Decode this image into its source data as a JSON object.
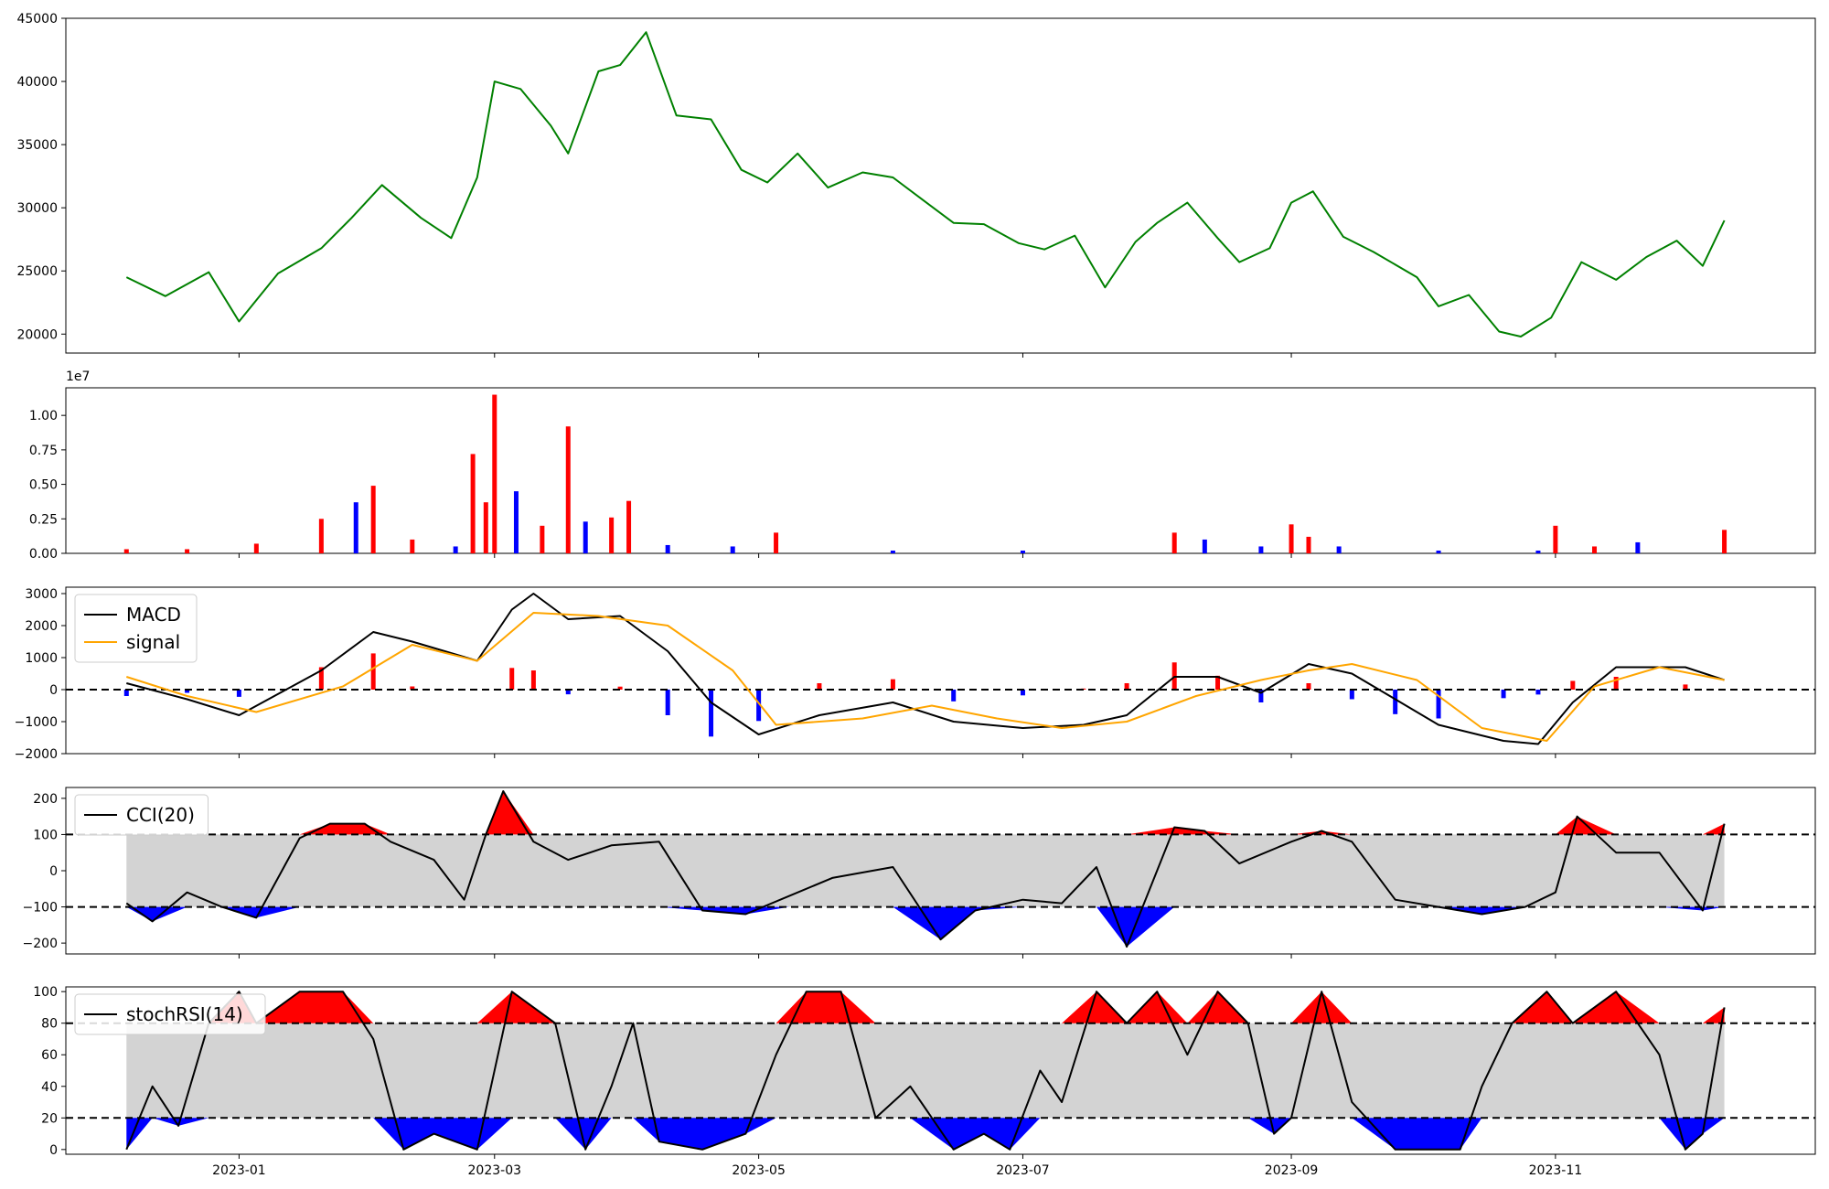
{
  "chart_data": [
    {
      "type": "line",
      "title": "",
      "xlabel": "",
      "ylabel": "",
      "ylim": [
        18500,
        45000
      ],
      "yticks": [
        "20000",
        "25000",
        "30000",
        "35000",
        "40000",
        "45000"
      ],
      "color": "#008000",
      "x": [
        "2022-12-06",
        "2022-12-15",
        "2022-12-25",
        "2023-01-01",
        "2023-01-10",
        "2023-01-20",
        "2023-01-27",
        "2023-02-03",
        "2023-02-12",
        "2023-02-19",
        "2023-02-25",
        "2023-03-01",
        "2023-03-07",
        "2023-03-14",
        "2023-03-18",
        "2023-03-25",
        "2023-03-30",
        "2023-04-05",
        "2023-04-12",
        "2023-04-20",
        "2023-04-27",
        "2023-05-03",
        "2023-05-10",
        "2023-05-17",
        "2023-05-25",
        "2023-06-01",
        "2023-06-08",
        "2023-06-15",
        "2023-06-22",
        "2023-06-30",
        "2023-07-06",
        "2023-07-13",
        "2023-07-20",
        "2023-07-27",
        "2023-08-01",
        "2023-08-08",
        "2023-08-15",
        "2023-08-20",
        "2023-08-27",
        "2023-09-01",
        "2023-09-06",
        "2023-09-13",
        "2023-09-20",
        "2023-09-30",
        "2023-10-05",
        "2023-10-12",
        "2023-10-19",
        "2023-10-24",
        "2023-10-31",
        "2023-11-07",
        "2023-11-15",
        "2023-11-22",
        "2023-11-29",
        "2023-12-05",
        "2023-12-10"
      ],
      "y": [
        24500,
        23000,
        24900,
        21000,
        24800,
        26800,
        29200,
        31800,
        29200,
        27600,
        32400,
        40000,
        39400,
        36500,
        34300,
        40800,
        41300,
        43900,
        37300,
        37000,
        33000,
        32000,
        34300,
        31600,
        32800,
        32400,
        30600,
        28800,
        28700,
        27200,
        26700,
        27800,
        23700,
        27300,
        28800,
        30400,
        27600,
        25700,
        26800,
        30400,
        31300,
        27700,
        26500,
        24500,
        22200,
        23100,
        20200,
        19800,
        21300,
        25700,
        24300,
        26100,
        27400,
        25400,
        29000
      ],
      "xticks": [
        "2023-01",
        "2023-03",
        "2023-05",
        "2023-07",
        "2023-09",
        "2023-11"
      ]
    },
    {
      "type": "bar",
      "title": "",
      "xlabel": "",
      "ylabel": "",
      "offset_label": "1e7",
      "ylim": [
        0,
        1.2
      ],
      "yticks": [
        "0.00",
        "0.25",
        "0.50",
        "0.75",
        "1.00"
      ],
      "up_color": "#ff0000",
      "down_color": "#0000ff",
      "x": [
        "2022-12-06",
        "2022-12-20",
        "2023-01-05",
        "2023-01-20",
        "2023-01-28",
        "2023-02-01",
        "2023-02-10",
        "2023-02-20",
        "2023-02-24",
        "2023-02-27",
        "2023-03-01",
        "2023-03-06",
        "2023-03-12",
        "2023-03-18",
        "2023-03-22",
        "2023-03-28",
        "2023-04-01",
        "2023-04-10",
        "2023-04-25",
        "2023-05-05",
        "2023-06-01",
        "2023-07-01",
        "2023-08-05",
        "2023-08-12",
        "2023-08-25",
        "2023-09-01",
        "2023-09-05",
        "2023-09-12",
        "2023-10-05",
        "2023-10-28",
        "2023-11-01",
        "2023-11-10",
        "2023-11-20",
        "2023-12-10"
      ],
      "values": [
        0.03,
        0.03,
        0.07,
        0.25,
        0.37,
        0.49,
        0.1,
        0.05,
        0.72,
        0.37,
        1.15,
        0.45,
        0.2,
        0.92,
        0.23,
        0.26,
        0.38,
        0.06,
        0.05,
        0.15,
        0.02,
        0.02,
        0.15,
        0.1,
        0.05,
        0.21,
        0.12,
        0.05,
        0.02,
        0.02,
        0.2,
        0.05,
        0.08,
        0.17
      ],
      "up": [
        true,
        true,
        true,
        true,
        false,
        true,
        true,
        false,
        true,
        true,
        true,
        false,
        true,
        true,
        false,
        true,
        true,
        false,
        false,
        true,
        false,
        false,
        true,
        false,
        false,
        true,
        true,
        false,
        false,
        false,
        true,
        true,
        false,
        true
      ],
      "xticks": [
        "2023-01",
        "2023-03",
        "2023-05",
        "2023-07",
        "2023-09",
        "2023-11"
      ]
    },
    {
      "type": "line",
      "title": "",
      "xlabel": "",
      "ylabel": "",
      "ylim": [
        -2000,
        3200
      ],
      "yticks": [
        "−2000",
        "−1000",
        "0",
        "1000",
        "2000",
        "3000"
      ],
      "legend_position": "top-left",
      "reference_line": 0,
      "histogram_up_color": "#ff0000",
      "histogram_down_color": "#0000ff",
      "series": [
        {
          "name": "MACD",
          "color": "#000000",
          "x": [
            "2022-12-06",
            "2022-12-20",
            "2023-01-01",
            "2023-01-20",
            "2023-02-01",
            "2023-02-10",
            "2023-02-25",
            "2023-03-05",
            "2023-03-10",
            "2023-03-18",
            "2023-03-30",
            "2023-04-10",
            "2023-04-20",
            "2023-05-01",
            "2023-05-15",
            "2023-06-01",
            "2023-06-15",
            "2023-07-01",
            "2023-07-15",
            "2023-07-25",
            "2023-08-05",
            "2023-08-15",
            "2023-08-25",
            "2023-09-05",
            "2023-09-15",
            "2023-09-25",
            "2023-10-05",
            "2023-10-20",
            "2023-10-28",
            "2023-11-05",
            "2023-11-15",
            "2023-12-01",
            "2023-12-10"
          ],
          "values": [
            200,
            -300,
            -800,
            600,
            1800,
            1500,
            900,
            2500,
            3000,
            2200,
            2300,
            1200,
            -400,
            -1400,
            -800,
            -400,
            -1000,
            -1200,
            -1100,
            -800,
            400,
            400,
            -100,
            800,
            500,
            -300,
            -1100,
            -1600,
            -1700,
            -400,
            700,
            700,
            300
          ]
        },
        {
          "name": "signal",
          "color": "#ffa500",
          "x": [
            "2022-12-06",
            "2022-12-20",
            "2023-01-05",
            "2023-01-25",
            "2023-02-10",
            "2023-02-25",
            "2023-03-10",
            "2023-03-25",
            "2023-04-10",
            "2023-04-25",
            "2023-05-05",
            "2023-05-25",
            "2023-06-10",
            "2023-06-25",
            "2023-07-10",
            "2023-07-25",
            "2023-08-10",
            "2023-08-25",
            "2023-09-05",
            "2023-09-15",
            "2023-09-30",
            "2023-10-15",
            "2023-10-30",
            "2023-11-10",
            "2023-11-25",
            "2023-12-10"
          ],
          "values": [
            400,
            -200,
            -700,
            100,
            1400,
            900,
            2400,
            2300,
            2000,
            600,
            -1100,
            -900,
            -500,
            -900,
            -1200,
            -1000,
            -200,
            300,
            600,
            800,
            300,
            -1200,
            -1600,
            100,
            700,
            300
          ]
        }
      ],
      "xticks": [
        "2023-01",
        "2023-03",
        "2023-05",
        "2023-07",
        "2023-09",
        "2023-11"
      ]
    },
    {
      "type": "line",
      "title": "",
      "xlabel": "",
      "ylabel": "",
      "ylim": [
        -230,
        230
      ],
      "yticks": [
        "−200",
        "−100",
        "0",
        "100",
        "200"
      ],
      "legend_position": "top-left",
      "bands": [
        -100,
        100
      ],
      "band_fill": "#d3d3d3",
      "over_color": "#ff0000",
      "under_color": "#0000ff",
      "series": [
        {
          "name": "CCI(20)",
          "color": "#000000",
          "x": [
            "2022-12-06",
            "2022-12-12",
            "2022-12-20",
            "2022-12-28",
            "2023-01-05",
            "2023-01-15",
            "2023-01-22",
            "2023-01-30",
            "2023-02-05",
            "2023-02-15",
            "2023-02-22",
            "2023-02-27",
            "2023-03-03",
            "2023-03-10",
            "2023-03-18",
            "2023-03-28",
            "2023-04-08",
            "2023-04-18",
            "2023-04-28",
            "2023-05-08",
            "2023-05-18",
            "2023-06-01",
            "2023-06-12",
            "2023-06-20",
            "2023-07-01",
            "2023-07-10",
            "2023-07-18",
            "2023-07-25",
            "2023-08-05",
            "2023-08-12",
            "2023-08-20",
            "2023-09-01",
            "2023-09-08",
            "2023-09-15",
            "2023-09-25",
            "2023-10-05",
            "2023-10-15",
            "2023-10-25",
            "2023-11-01",
            "2023-11-06",
            "2023-11-15",
            "2023-11-25",
            "2023-12-05",
            "2023-12-10"
          ],
          "values": [
            -90,
            -140,
            -60,
            -100,
            -130,
            90,
            130,
            130,
            80,
            30,
            -80,
            100,
            220,
            80,
            30,
            70,
            80,
            -110,
            -120,
            -70,
            -20,
            10,
            -190,
            -110,
            -80,
            -90,
            10,
            -210,
            120,
            110,
            20,
            80,
            110,
            80,
            -80,
            -100,
            -120,
            -100,
            -60,
            150,
            50,
            50,
            -110,
            130
          ]
        }
      ],
      "xticks": [
        "2023-01",
        "2023-03",
        "2023-05",
        "2023-07",
        "2023-09",
        "2023-11"
      ]
    },
    {
      "type": "line",
      "title": "",
      "xlabel": "",
      "ylabel": "",
      "ylim": [
        -3,
        103
      ],
      "yticks": [
        "0",
        "20",
        "40",
        "60",
        "80",
        "100"
      ],
      "legend_position": "top-left",
      "bands": [
        20,
        80
      ],
      "band_fill": "#d3d3d3",
      "over_color": "#ff0000",
      "under_color": "#0000ff",
      "series": [
        {
          "name": "stochRSI(14)",
          "color": "#000000",
          "x": [
            "2022-12-06",
            "2022-12-12",
            "2022-12-18",
            "2022-12-25",
            "2023-01-01",
            "2023-01-05",
            "2023-01-15",
            "2023-01-25",
            "2023-02-01",
            "2023-02-08",
            "2023-02-15",
            "2023-02-25",
            "2023-03-05",
            "2023-03-15",
            "2023-03-22",
            "2023-03-28",
            "2023-04-02",
            "2023-04-08",
            "2023-04-18",
            "2023-04-28",
            "2023-05-05",
            "2023-05-12",
            "2023-05-20",
            "2023-05-28",
            "2023-06-05",
            "2023-06-15",
            "2023-06-22",
            "2023-06-28",
            "2023-07-05",
            "2023-07-10",
            "2023-07-18",
            "2023-07-25",
            "2023-08-01",
            "2023-08-08",
            "2023-08-15",
            "2023-08-22",
            "2023-08-28",
            "2023-09-01",
            "2023-09-08",
            "2023-09-15",
            "2023-09-25",
            "2023-10-10",
            "2023-10-15",
            "2023-10-22",
            "2023-10-30",
            "2023-11-05",
            "2023-11-15",
            "2023-11-25",
            "2023-12-01",
            "2023-12-05",
            "2023-12-10"
          ],
          "values": [
            0,
            40,
            15,
            80,
            100,
            80,
            100,
            100,
            70,
            0,
            10,
            0,
            100,
            80,
            0,
            40,
            80,
            5,
            0,
            10,
            60,
            100,
            100,
            20,
            40,
            0,
            10,
            0,
            50,
            30,
            100,
            80,
            100,
            60,
            100,
            80,
            10,
            20,
            100,
            30,
            0,
            0,
            40,
            80,
            100,
            80,
            100,
            60,
            0,
            10,
            90
          ]
        }
      ],
      "xticks": [
        "2023-01",
        "2023-03",
        "2023-05",
        "2023-07",
        "2023-09",
        "2023-11"
      ]
    }
  ]
}
